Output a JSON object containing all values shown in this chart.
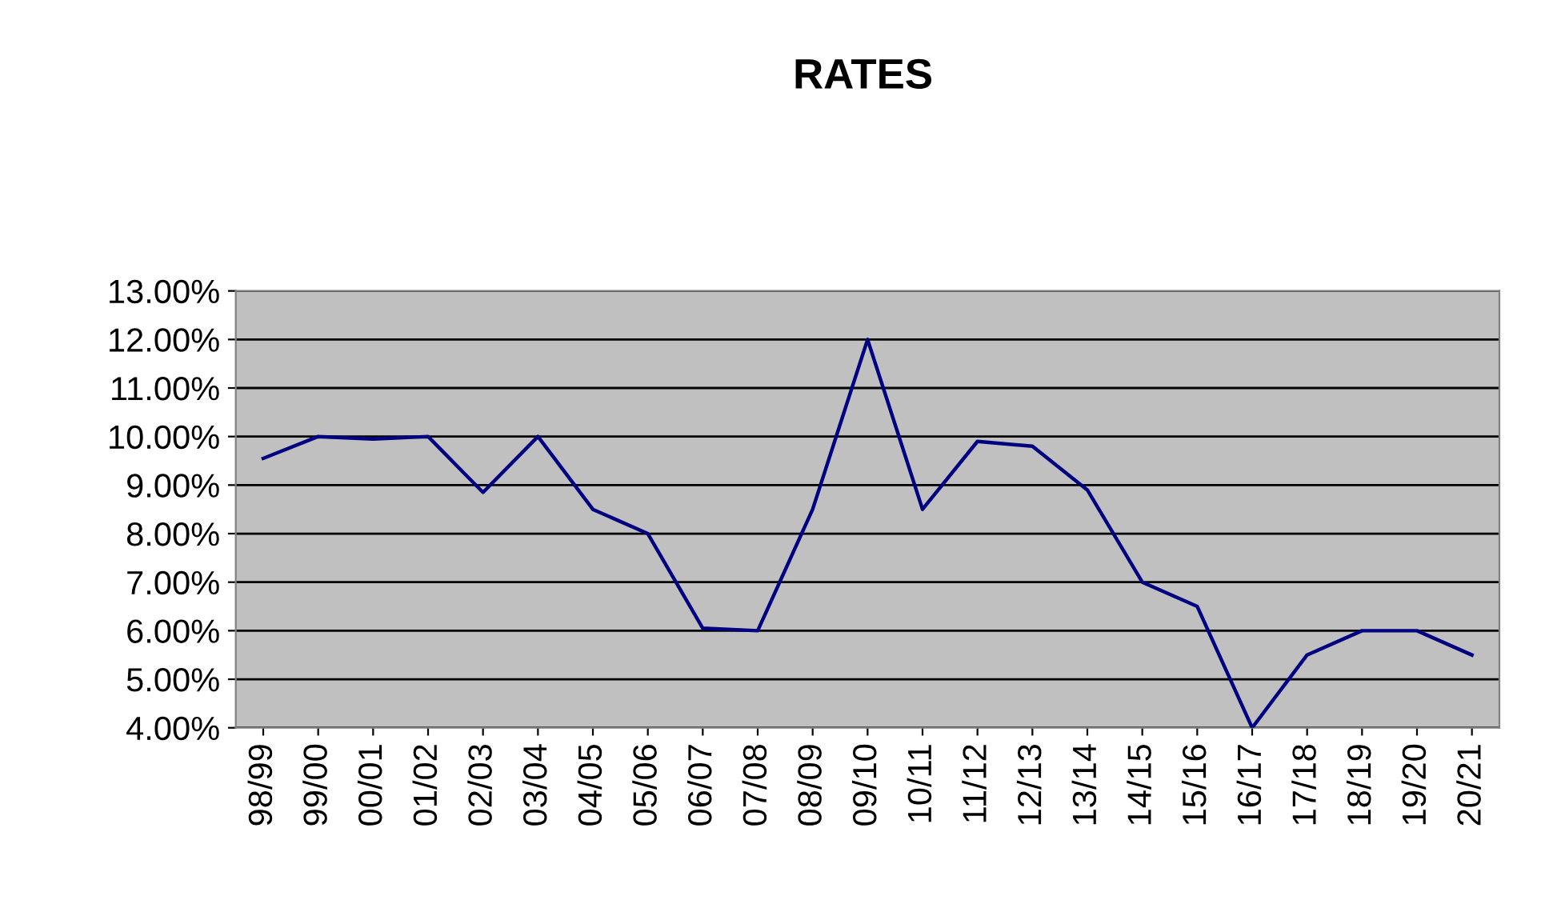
{
  "chart_data": {
    "type": "line",
    "title": "RATES",
    "categories": [
      "98/99",
      "99/00",
      "00/01",
      "01/02",
      "02/03",
      "03/04",
      "04/05",
      "05/06",
      "06/07",
      "07/08",
      "08/09",
      "09/10",
      "10/11",
      "11/12",
      "12/13",
      "13/14",
      "14/15",
      "15/16",
      "16/17",
      "17/18",
      "18/19",
      "19/20",
      "20/21"
    ],
    "series": [
      {
        "color": "#000080",
        "values": [
          9.55,
          10.0,
          9.95,
          10.0,
          8.85,
          10.0,
          8.5,
          8.0,
          6.05,
          6.0,
          8.5,
          12.0,
          8.5,
          9.9,
          9.8,
          8.9,
          7.0,
          6.5,
          4.0,
          5.5,
          6.0,
          6.0,
          5.5
        ]
      }
    ],
    "ylim": [
      4,
      13
    ],
    "yticks": [
      {
        "value": 4,
        "label": "4.00%"
      },
      {
        "value": 5,
        "label": "5.00%"
      },
      {
        "value": 6,
        "label": "6.00%"
      },
      {
        "value": 7,
        "label": "7.00%"
      },
      {
        "value": 8,
        "label": "8.00%"
      },
      {
        "value": 9,
        "label": "9.00%"
      },
      {
        "value": 10,
        "label": "10.00%"
      },
      {
        "value": 11,
        "label": "11.00%"
      },
      {
        "value": 12,
        "label": "12.00%"
      },
      {
        "value": 13,
        "label": "13.00%"
      }
    ],
    "grid": "y",
    "legend": false,
    "marker": "none",
    "line_style": "solid"
  }
}
